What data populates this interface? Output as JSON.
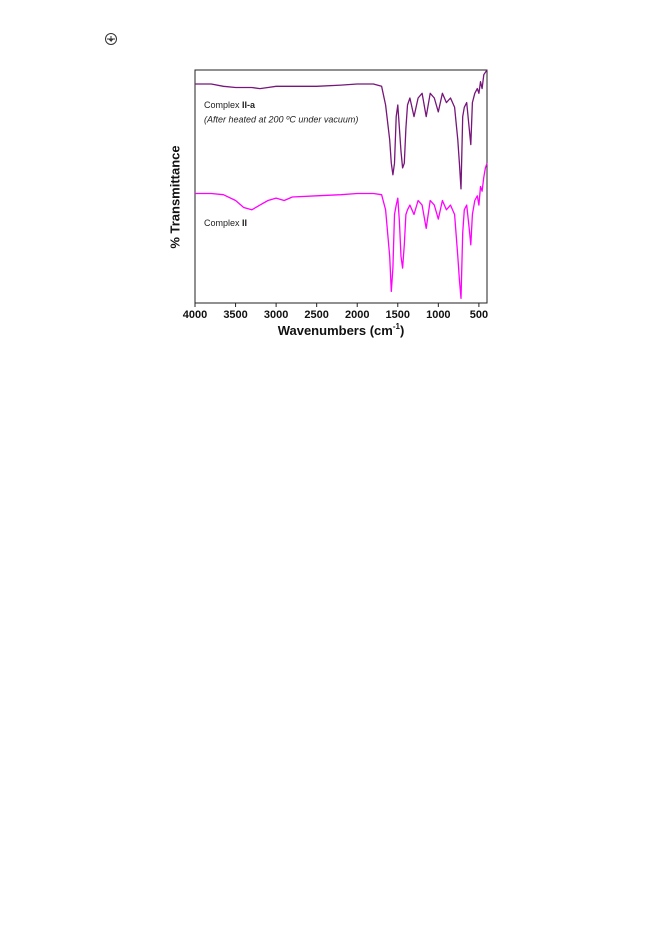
{
  "chart_data": {
    "type": "line",
    "x_label": {
      "main": "Wavenumbers (cm",
      "sup": "-1",
      "end": ")"
    },
    "y_label": "% Transmittance",
    "annotations": [
      {
        "prefix": "Complex ",
        "bold": "II-a",
        "note": "(After heated at 200 ºC under vacuum)"
      },
      {
        "prefix": "Complex ",
        "bold": "II"
      }
    ],
    "x": [
      4000,
      3800,
      3650,
      3500,
      3400,
      3300,
      3200,
      3100,
      3000,
      2900,
      2800,
      2500,
      2200,
      2000,
      1800,
      1700,
      1650,
      1600,
      1580,
      1560,
      1540,
      1520,
      1500,
      1480,
      1460,
      1440,
      1420,
      1400,
      1380,
      1350,
      1300,
      1250,
      1200,
      1150,
      1100,
      1050,
      1000,
      950,
      900,
      850,
      800,
      760,
      740,
      720,
      700,
      680,
      650,
      620,
      600,
      580,
      550,
      520,
      500,
      480,
      460,
      440,
      420,
      400
    ],
    "series": [
      {
        "name": "Complex II-a",
        "color": "#76167a",
        "values": [
          94,
          94,
          93,
          92.5,
          92.5,
          92.5,
          92,
          92.5,
          93,
          93,
          93,
          93,
          93.5,
          94,
          94,
          93,
          85,
          70,
          60,
          55,
          60,
          80,
          85,
          75,
          65,
          58,
          60,
          75,
          85,
          88,
          80,
          88,
          90,
          80,
          90,
          88,
          82,
          90,
          86,
          88,
          84,
          70,
          60,
          49,
          80,
          84,
          86,
          75,
          68,
          86,
          90,
          92,
          90,
          95,
          92,
          98,
          99,
          100
        ]
      },
      {
        "name": "Complex II",
        "color": "#ff00ff",
        "values": [
          47,
          47,
          46.5,
          44,
          41,
          40,
          42,
          44,
          45,
          44,
          45.5,
          46,
          46.5,
          47,
          47,
          46.5,
          40,
          20,
          5,
          15,
          38,
          42,
          45,
          35,
          20,
          15,
          25,
          38,
          40,
          42,
          38,
          44,
          42,
          32,
          44,
          42,
          36,
          44,
          40,
          42,
          38,
          20,
          10,
          2,
          30,
          40,
          42,
          32,
          25,
          38,
          44,
          46,
          42,
          50,
          48,
          54,
          58,
          60
        ]
      }
    ],
    "xlim": [
      4000,
      400
    ],
    "ylim": [
      0,
      100
    ],
    "xticks": [
      4000,
      3500,
      3000,
      2500,
      2000,
      1500,
      1000,
      500
    ]
  }
}
